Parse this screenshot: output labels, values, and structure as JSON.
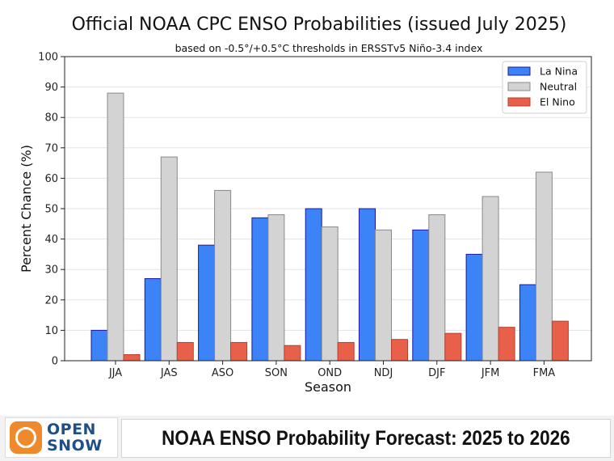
{
  "chart_data": {
    "type": "bar",
    "title": "Official NOAA CPC ENSO Probabilities (issued July 2025)",
    "subtitle": "based on -0.5°/+0.5°C thresholds in ERSSTv5 Niño-3.4 index",
    "xlabel": "Season",
    "ylabel": "Percent Chance (%)",
    "ylim": [
      0,
      100
    ],
    "yticks": [
      0,
      10,
      20,
      30,
      40,
      50,
      60,
      70,
      80,
      90,
      100
    ],
    "grid": "horizontal",
    "legend_position": "top-right",
    "categories": [
      "JJA",
      "JAS",
      "ASO",
      "SON",
      "OND",
      "NDJ",
      "DJF",
      "JFM",
      "FMA"
    ],
    "series": [
      {
        "name": "La Nina",
        "color": "#3b83f6",
        "values": [
          10,
          27,
          38,
          47,
          50,
          50,
          43,
          35,
          25
        ]
      },
      {
        "name": "Neutral",
        "color": "#d3d3d3",
        "values": [
          88,
          67,
          56,
          48,
          44,
          43,
          48,
          54,
          62
        ]
      },
      {
        "name": "El Nino",
        "color": "#e9604a",
        "values": [
          2,
          6,
          6,
          5,
          6,
          7,
          9,
          11,
          13
        ]
      }
    ]
  },
  "footer": {
    "logo_line1": "OPEN",
    "logo_line2": "SNOW",
    "logo_icon": "sun-icon",
    "banner": "NOAA ENSO Probability Forecast: 2025 to 2026"
  },
  "colors": {
    "la_nina_edge": "#1a1aa6",
    "neutral_edge": "#8a8a8a",
    "el_nino_edge": "#b8412e",
    "logo_orange": "#ef8a2c",
    "logo_blue": "#1f4f86"
  }
}
